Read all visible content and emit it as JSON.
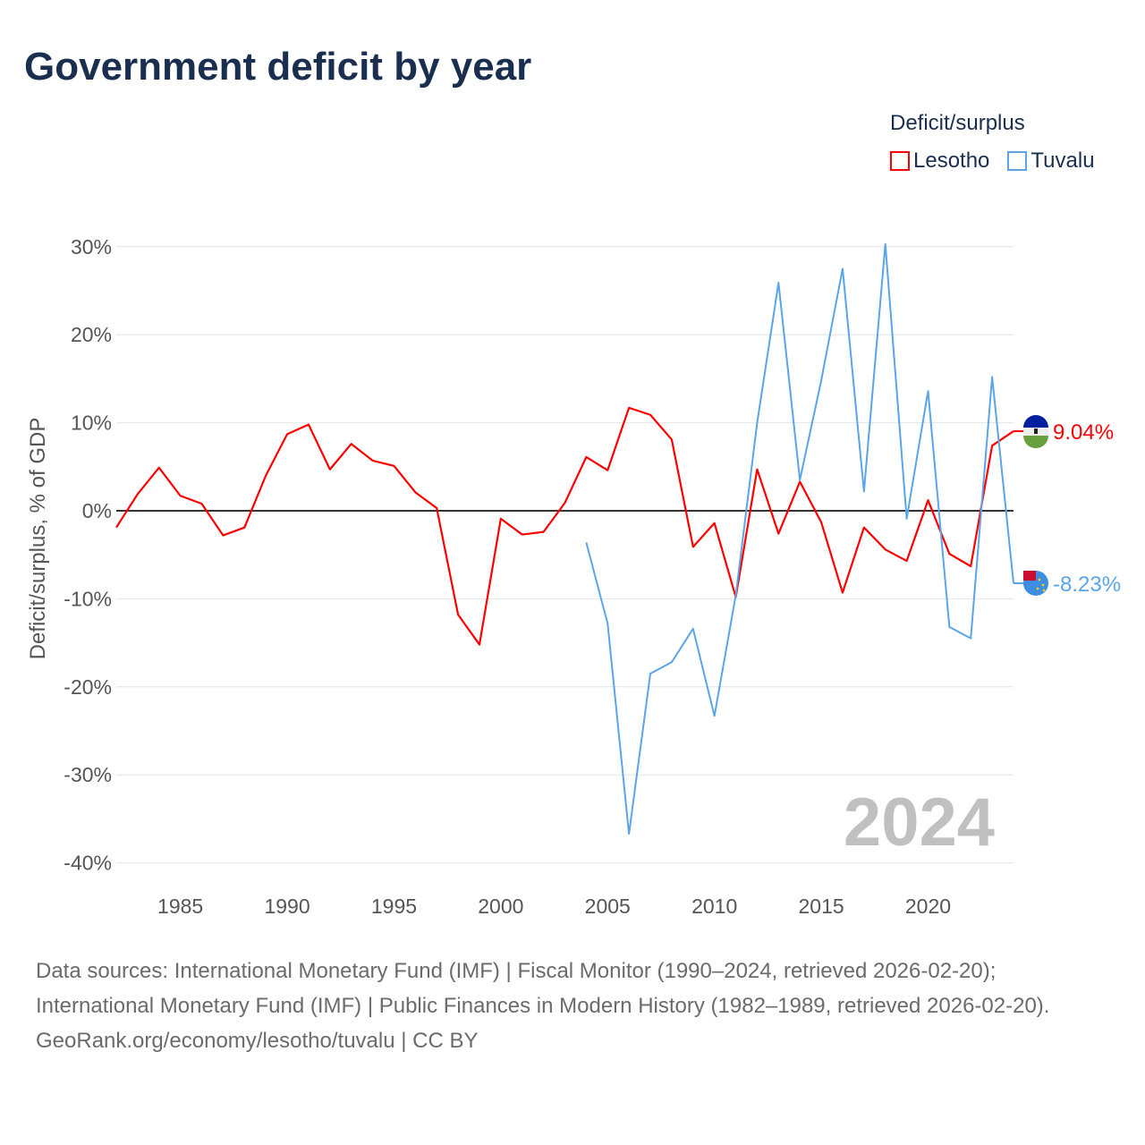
{
  "title": "Government deficit by year",
  "legend": {
    "title": "Deficit/surplus",
    "items": [
      {
        "name": "Lesotho",
        "color": "#ff0000"
      },
      {
        "name": "Tuvalu",
        "color": "#5aa5e8"
      }
    ]
  },
  "year_watermark": "2024",
  "sources": {
    "line1": "Data sources: International Monetary Fund (IMF) | Fiscal Monitor (1990–2024, retrieved 2026-02-20); International Monetary Fund (IMF) | Public Finances in Modern History (1982–1989, retrieved 2026-02-20).",
    "line2": "GeoRank.org/economy/lesotho/tuvalu | CC BY"
  },
  "chart_data": {
    "type": "line",
    "ylabel": "Deficit/surplus, % of GDP",
    "ylim": [
      -40,
      30
    ],
    "yticks": [
      30,
      20,
      10,
      0,
      -10,
      -20,
      -30,
      -40
    ],
    "ytick_labels": [
      "30%",
      "20%",
      "10%",
      "0%",
      "-10%",
      "-20%",
      "-30%",
      "-40%"
    ],
    "xlim": [
      1982,
      2024
    ],
    "xticks": [
      1985,
      1990,
      1995,
      2000,
      2005,
      2010,
      2015,
      2020
    ],
    "grid": true,
    "legend_placement": "top-right",
    "series": [
      {
        "name": "Lesotho",
        "color": "#ff0000",
        "end_label": "9.04%",
        "x_start": 1982,
        "values": [
          -1.9,
          1.9,
          4.9,
          1.7,
          0.8,
          -2.8,
          -1.9,
          4.0,
          8.7,
          9.8,
          4.7,
          7.6,
          5.7,
          5.1,
          2.1,
          0.3,
          -11.8,
          -15.2,
          -0.9,
          -2.7,
          -2.4,
          0.9,
          6.1,
          4.6,
          11.7,
          10.9,
          8.1,
          -4.1,
          -1.4,
          -9.8,
          4.7,
          -2.6,
          3.3,
          -1.3,
          -9.3,
          -1.9,
          -4.4,
          -5.7,
          1.2,
          -4.9,
          -6.3,
          7.4,
          9.04
        ]
      },
      {
        "name": "Tuvalu",
        "color": "#5aa5e8",
        "end_label": "-8.23%",
        "x_start": 2004,
        "values": [
          -3.6,
          -12.8,
          -36.7,
          -18.5,
          -17.2,
          -13.4,
          -23.3,
          -9.6,
          10.0,
          25.9,
          3.5,
          14.8,
          27.5,
          2.2,
          30.3,
          -0.9,
          13.6,
          -13.2,
          -14.5,
          15.2,
          -8.23
        ]
      }
    ]
  }
}
